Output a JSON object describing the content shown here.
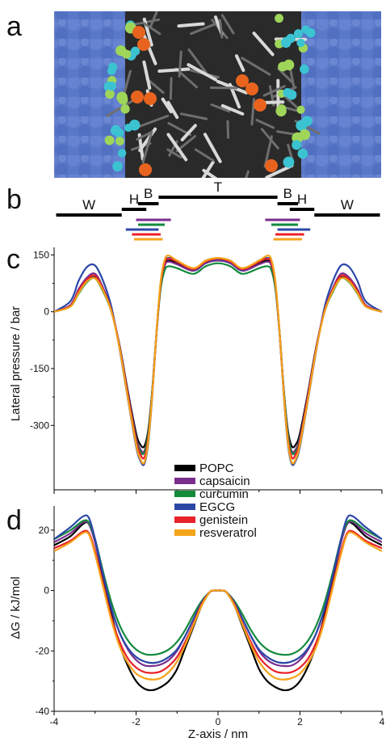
{
  "panel_labels": [
    "a",
    "b",
    "c",
    "d"
  ],
  "regions": {
    "labels": [
      "W",
      "H",
      "B",
      "T",
      "B",
      "H",
      "W"
    ],
    "bars": [
      {
        "label": "W",
        "z": [
          -3.95,
          -2.35
        ]
      },
      {
        "label": "H",
        "z": [
          -2.35,
          -1.75
        ]
      },
      {
        "label": "B",
        "z": [
          -1.95,
          -1.45
        ]
      },
      {
        "label": "T",
        "z": [
          -1.45,
          1.45
        ]
      },
      {
        "label": "B",
        "z": [
          1.45,
          1.95
        ]
      },
      {
        "label": "H",
        "z": [
          1.75,
          2.35
        ]
      },
      {
        "label": "W",
        "z": [
          2.35,
          3.95
        ]
      }
    ],
    "compound_positions": [
      {
        "name": "capsaicin",
        "color": "#7b2d8e",
        "left": [
          -2.0,
          -1.15
        ],
        "right": [
          1.15,
          2.0
        ]
      },
      {
        "name": "curcumin",
        "color": "#138a3c",
        "left": [
          -1.95,
          -1.3
        ],
        "right": [
          1.3,
          1.95
        ]
      },
      {
        "name": "EGCG",
        "color": "#2b47a6",
        "left": [
          -2.25,
          -1.45
        ],
        "right": [
          1.45,
          2.25
        ]
      },
      {
        "name": "genistein",
        "color": "#e8212a",
        "left": [
          -2.1,
          -1.4
        ],
        "right": [
          1.4,
          2.1
        ]
      },
      {
        "name": "resveratrol",
        "color": "#f5a31a",
        "left": [
          -2.05,
          -1.35
        ],
        "right": [
          1.35,
          2.05
        ]
      }
    ]
  },
  "legend": [
    "POPC",
    "capsaicin",
    "curcumin",
    "EGCG",
    "genistein",
    "resveratrol"
  ],
  "colors": {
    "POPC": "#000000",
    "capsaicin": "#7b2d8e",
    "curcumin": "#138a3c",
    "EGCG": "#2b47a6",
    "genistein": "#e8212a",
    "resveratrol": "#f5a31a",
    "water": "#5a78c8",
    "lipid_tail": "#6e6e6e",
    "headgroup_a": "#9fd65a",
    "headgroup_b": "#3cc3d2",
    "drug": "#e8641e"
  },
  "chart_data": [
    {
      "type": "line",
      "panel": "c",
      "xlabel": "",
      "ylabel": "Lateral pressure / bar",
      "xlim": [
        -4,
        4
      ],
      "ylim": [
        -470,
        170
      ],
      "yticks": [
        150,
        0,
        -150,
        -300
      ],
      "x": [
        -4,
        -3.6,
        -3.4,
        -3.2,
        -3.0,
        -2.8,
        -2.6,
        -2.4,
        -2.2,
        -2.0,
        -1.9,
        -1.8,
        -1.7,
        -1.6,
        -1.5,
        -1.4,
        -1.3,
        -1.2,
        -1.0,
        -0.6,
        -0.3,
        0,
        0.3,
        0.6,
        1.0,
        1.2,
        1.3,
        1.4,
        1.5,
        1.6,
        1.7,
        1.8,
        1.9,
        2.0,
        2.2,
        2.4,
        2.6,
        2.8,
        3.0,
        3.2,
        3.4,
        3.6,
        4
      ],
      "series": [
        {
          "name": "POPC",
          "values": [
            0,
            15,
            50,
            80,
            90,
            55,
            0,
            -90,
            -210,
            -320,
            -350,
            -355,
            -310,
            -200,
            -50,
            70,
            125,
            135,
            130,
            110,
            135,
            140,
            135,
            110,
            130,
            135,
            125,
            70,
            -50,
            -200,
            -310,
            -355,
            -350,
            -320,
            -210,
            -90,
            0,
            55,
            90,
            80,
            50,
            15,
            0
          ]
        },
        {
          "name": "capsaicin",
          "values": [
            0,
            18,
            60,
            90,
            100,
            62,
            5,
            -92,
            -215,
            -330,
            -362,
            -368,
            -318,
            -205,
            -52,
            68,
            122,
            132,
            125,
            108,
            128,
            135,
            128,
            108,
            125,
            132,
            122,
            68,
            -52,
            -205,
            -318,
            -368,
            -362,
            -330,
            -215,
            -92,
            5,
            62,
            100,
            90,
            60,
            18,
            0
          ]
        },
        {
          "name": "curcumin",
          "values": [
            0,
            14,
            48,
            78,
            88,
            52,
            0,
            -95,
            -220,
            -335,
            -368,
            -372,
            -318,
            -202,
            -55,
            60,
            110,
            120,
            115,
            100,
            120,
            128,
            120,
            100,
            115,
            120,
            110,
            60,
            -55,
            -202,
            -318,
            -372,
            -368,
            -335,
            -220,
            -95,
            0,
            52,
            88,
            78,
            48,
            14,
            0
          ]
        },
        {
          "name": "EGCG",
          "values": [
            0,
            28,
            82,
            118,
            122,
            80,
            12,
            -100,
            -230,
            -355,
            -392,
            -402,
            -345,
            -215,
            -55,
            75,
            132,
            142,
            135,
            110,
            130,
            138,
            130,
            110,
            135,
            142,
            132,
            75,
            -55,
            -215,
            -345,
            -402,
            -392,
            -355,
            -230,
            -100,
            12,
            80,
            122,
            118,
            82,
            28,
            0
          ]
        },
        {
          "name": "genistein",
          "values": [
            0,
            16,
            55,
            85,
            95,
            58,
            3,
            -95,
            -220,
            -340,
            -375,
            -385,
            -330,
            -210,
            -52,
            72,
            130,
            140,
            132,
            112,
            132,
            140,
            132,
            112,
            132,
            140,
            130,
            72,
            -52,
            -210,
            -330,
            -385,
            -375,
            -340,
            -220,
            -95,
            3,
            58,
            95,
            85,
            55,
            16,
            0
          ]
        },
        {
          "name": "resveratrol",
          "values": [
            0,
            14,
            50,
            80,
            88,
            55,
            0,
            -98,
            -228,
            -350,
            -388,
            -398,
            -340,
            -212,
            -50,
            80,
            138,
            148,
            135,
            115,
            135,
            142,
            135,
            115,
            135,
            148,
            138,
            80,
            -50,
            -212,
            -340,
            -398,
            -388,
            -350,
            -228,
            -98,
            0,
            55,
            88,
            80,
            50,
            14,
            0
          ]
        }
      ]
    },
    {
      "type": "line",
      "panel": "d",
      "xlabel": "Z-axis / nm",
      "ylabel": "ΔG / kJ/mol",
      "xlim": [
        -4,
        4
      ],
      "ylim": [
        -40,
        28
      ],
      "xticks": [
        -4,
        -2,
        0,
        2,
        4
      ],
      "yticks": [
        20,
        0,
        -20,
        -40
      ],
      "x": [
        -4,
        -3.6,
        -3.3,
        -3.15,
        -3.0,
        -2.8,
        -2.6,
        -2.4,
        -2.2,
        -2.0,
        -1.8,
        -1.6,
        -1.4,
        -1.2,
        -1.0,
        -0.8,
        -0.6,
        -0.4,
        -0.2,
        -0.1,
        0,
        0.1,
        0.2,
        0.4,
        0.6,
        0.8,
        1.0,
        1.2,
        1.4,
        1.6,
        1.8,
        2.0,
        2.2,
        2.4,
        2.6,
        2.8,
        3.0,
        3.15,
        3.3,
        3.6,
        4
      ],
      "series": [
        {
          "name": "POPC",
          "values": [
            15,
            18,
            22,
            22,
            16,
            4,
            -8,
            -18,
            -25,
            -30,
            -32.5,
            -33,
            -32,
            -30,
            -26,
            -19,
            -12,
            -5,
            -0.5,
            0,
            0,
            0,
            -0.5,
            -5,
            -12,
            -19,
            -26,
            -30,
            -32,
            -33,
            -32.5,
            -30,
            -25,
            -18,
            -8,
            4,
            16,
            22,
            22,
            18,
            15
          ]
        },
        {
          "name": "capsaicin",
          "values": [
            16,
            19,
            22.5,
            22,
            16,
            5,
            -6,
            -14,
            -19.5,
            -23,
            -24.8,
            -25,
            -24.5,
            -23,
            -20,
            -15,
            -9.5,
            -4,
            -0.5,
            0,
            0,
            0,
            -0.5,
            -4,
            -9.5,
            -15,
            -20,
            -23,
            -24.5,
            -25,
            -24.8,
            -23,
            -19.5,
            -14,
            -6,
            5,
            16,
            22,
            22.5,
            19,
            16
          ]
        },
        {
          "name": "curcumin",
          "values": [
            17,
            20,
            23,
            22.5,
            17,
            6,
            -4,
            -11.5,
            -16.5,
            -19.5,
            -21,
            -21.3,
            -20.8,
            -19.5,
            -17,
            -13,
            -8,
            -3.5,
            -0.5,
            0,
            0,
            0,
            -0.5,
            -3.5,
            -8,
            -13,
            -17,
            -19.5,
            -20.8,
            -21.3,
            -21,
            -19.5,
            -16.5,
            -11.5,
            -4,
            6,
            17,
            22.5,
            23,
            20,
            17
          ]
        },
        {
          "name": "EGCG",
          "values": [
            17,
            21,
            24.5,
            24,
            17,
            5,
            -6,
            -14,
            -19,
            -22,
            -23.5,
            -24,
            -23.5,
            -22,
            -19.5,
            -15,
            -9.5,
            -4,
            -0.5,
            0,
            0,
            0,
            -0.5,
            -4,
            -9.5,
            -15,
            -19.5,
            -22,
            -23.5,
            -24,
            -23.5,
            -22,
            -19,
            -14,
            -6,
            5,
            17,
            24,
            24.5,
            21,
            17
          ]
        },
        {
          "name": "genistein",
          "values": [
            14,
            16.5,
            19.5,
            19,
            13,
            2,
            -9,
            -17,
            -22.5,
            -25.5,
            -27,
            -27.3,
            -26.8,
            -25,
            -22,
            -17,
            -11,
            -4.5,
            -0.5,
            0,
            0,
            0,
            -0.5,
            -4.5,
            -11,
            -17,
            -22,
            -25,
            -26.8,
            -27.3,
            -27,
            -25.5,
            -22.5,
            -17,
            -9,
            2,
            13,
            19,
            19.5,
            16.5,
            14
          ]
        },
        {
          "name": "resveratrol",
          "values": [
            13,
            16,
            19,
            18.5,
            12,
            1,
            -10,
            -18.5,
            -24,
            -27.5,
            -29,
            -29.5,
            -29,
            -27,
            -23.5,
            -18,
            -11.5,
            -5,
            -0.5,
            0,
            0,
            0,
            -0.5,
            -5,
            -11.5,
            -18,
            -23.5,
            -27,
            -29,
            -29.5,
            -29,
            -27.5,
            -24,
            -18.5,
            -10,
            1,
            12,
            18.5,
            19,
            16,
            13
          ]
        }
      ]
    }
  ]
}
